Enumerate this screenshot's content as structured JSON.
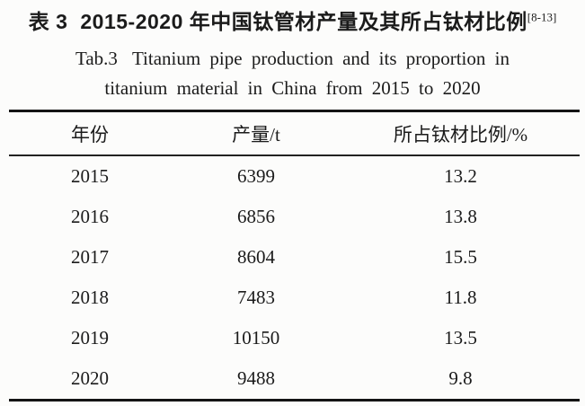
{
  "title": {
    "zh_label": "表 3",
    "zh_text": "2015-2020 年中国钛管材产量及其所占钛材比例",
    "citation": "[8-13]",
    "en_label": "Tab.3",
    "en_line1": "Titanium pipe production and its proportion in",
    "en_line2": "titanium material in China from 2015 to 2020"
  },
  "table": {
    "columns": [
      "年份",
      "产量/t",
      "所占钛材比例/%"
    ],
    "rows": [
      [
        "2015",
        "6399",
        "13.2"
      ],
      [
        "2016",
        "6856",
        "13.8"
      ],
      [
        "2017",
        "8604",
        "15.5"
      ],
      [
        "2018",
        "7483",
        "11.8"
      ],
      [
        "2019",
        "10150",
        "13.5"
      ],
      [
        "2020",
        "9488",
        "9.8"
      ]
    ]
  },
  "chart_data": {
    "type": "table",
    "title": "2015-2020 年中国钛管材产量及其所占钛材比例 (Titanium pipe production and its proportion in titanium material in China from 2015 to 2020)",
    "categories": [
      2015,
      2016,
      2017,
      2018,
      2019,
      2020
    ],
    "series": [
      {
        "name": "产量/t",
        "values": [
          6399,
          6856,
          8604,
          7483,
          10150,
          9488
        ]
      },
      {
        "name": "所占钛材比例/%",
        "values": [
          13.2,
          13.8,
          15.5,
          11.8,
          13.5,
          9.8
        ]
      }
    ]
  },
  "colors": {
    "text": "#1b1b1b",
    "rule": "#141414",
    "background": "#fcfcfb"
  }
}
